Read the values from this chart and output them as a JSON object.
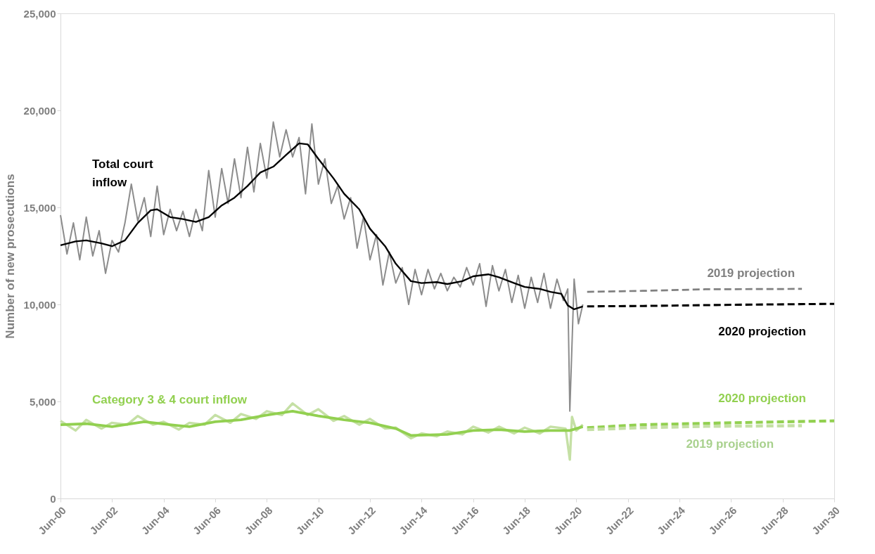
{
  "chart_data": {
    "type": "line",
    "ylabel": "Number of new prosecutions",
    "xlim": [
      "2000-06",
      "2030-06"
    ],
    "xticks": [
      {
        "value": "2000-06",
        "label": "Jun-00"
      },
      {
        "value": "2002-06",
        "label": "Jun-02"
      },
      {
        "value": "2004-06",
        "label": "Jun-04"
      },
      {
        "value": "2006-06",
        "label": "Jun-06"
      },
      {
        "value": "2008-06",
        "label": "Jun-08"
      },
      {
        "value": "2010-06",
        "label": "Jun-10"
      },
      {
        "value": "2012-06",
        "label": "Jun-12"
      },
      {
        "value": "2014-06",
        "label": "Jun-14"
      },
      {
        "value": "2016-06",
        "label": "Jun-16"
      },
      {
        "value": "2018-06",
        "label": "Jun-18"
      },
      {
        "value": "2020-06",
        "label": "Jun-20"
      },
      {
        "value": "2022-06",
        "label": "Jun-22"
      },
      {
        "value": "2024-06",
        "label": "Jun-24"
      },
      {
        "value": "2026-06",
        "label": "Jun-26"
      },
      {
        "value": "2028-06",
        "label": "Jun-28"
      },
      {
        "value": "2030-06",
        "label": "Jun-30"
      }
    ],
    "ylim": [
      0,
      25000
    ],
    "yticks": [
      0,
      {
        "value": 5000,
        "label": "5,000"
      },
      {
        "value": 10000,
        "label": "10,000"
      },
      {
        "value": 15000,
        "label": "15,000"
      },
      {
        "value": 20000,
        "label": "20,000"
      },
      {
        "value": 25000,
        "label": "25,000"
      }
    ],
    "grid": false,
    "legend": false,
    "marker": "none",
    "series": [
      {
        "color": "#8c8c8c",
        "line_style": "solid",
        "x": [
          "2000-06",
          "2000-09",
          "2000-12",
          "2001-03",
          "2001-06",
          "2001-09",
          "2001-12",
          "2002-03",
          "2002-06",
          "2002-09",
          "2002-12",
          "2003-03",
          "2003-06",
          "2003-09",
          "2003-12",
          "2004-03",
          "2004-06",
          "2004-09",
          "2004-12",
          "2005-03",
          "2005-06",
          "2005-09",
          "2005-12",
          "2006-03",
          "2006-06",
          "2006-09",
          "2006-12",
          "2007-03",
          "2007-06",
          "2007-09",
          "2007-12",
          "2008-03",
          "2008-06",
          "2008-09",
          "2008-12",
          "2009-03",
          "2009-06",
          "2009-09",
          "2009-12",
          "2010-03",
          "2010-06",
          "2010-09",
          "2010-12",
          "2011-03",
          "2011-06",
          "2011-09",
          "2011-12",
          "2012-03",
          "2012-06",
          "2012-09",
          "2012-12",
          "2013-03",
          "2013-06",
          "2013-09",
          "2013-12",
          "2014-03",
          "2014-06",
          "2014-09",
          "2014-12",
          "2015-03",
          "2015-06",
          "2015-09",
          "2015-12",
          "2016-03",
          "2016-06",
          "2016-09",
          "2016-12",
          "2017-03",
          "2017-06",
          "2017-09",
          "2017-12",
          "2018-03",
          "2018-06",
          "2018-09",
          "2018-12",
          "2019-03",
          "2019-06",
          "2019-09",
          "2019-12",
          "2020-02",
          "2020-03",
          "2020-05",
          "2020-07",
          "2020-09"
        ],
        "values": [
          14600,
          12600,
          14200,
          12300,
          14500,
          12500,
          13800,
          11600,
          13300,
          12700,
          14200,
          16200,
          14300,
          15500,
          13500,
          16100,
          13600,
          14900,
          13800,
          14800,
          13500,
          14900,
          13800,
          16900,
          14500,
          17000,
          15200,
          17500,
          15500,
          18100,
          15800,
          18300,
          16500,
          19400,
          17600,
          19000,
          17600,
          18600,
          15700,
          19300,
          16200,
          17500,
          15200,
          16100,
          14400,
          15500,
          12900,
          14500,
          12300,
          13600,
          11000,
          12700,
          11100,
          11900,
          10000,
          11800,
          10500,
          11800,
          10800,
          11600,
          10700,
          11400,
          10900,
          11900,
          11000,
          12100,
          9900,
          12000,
          10700,
          11800,
          10100,
          11500,
          9800,
          11400,
          10100,
          11600,
          9800,
          11300,
          10200,
          10800,
          4500,
          11300,
          9000,
          10000
        ]
      },
      {
        "name": "Total court inflow",
        "color": "#000000",
        "line_style": "solid",
        "x": [
          "2000-06",
          "2001-01",
          "2001-06",
          "2002-01",
          "2002-06",
          "2002-12",
          "2003-06",
          "2003-12",
          "2004-03",
          "2004-09",
          "2005-03",
          "2005-09",
          "2006-03",
          "2006-09",
          "2007-03",
          "2007-09",
          "2008-03",
          "2008-09",
          "2009-03",
          "2009-09",
          "2010-01",
          "2010-06",
          "2011-01",
          "2011-06",
          "2012-01",
          "2012-06",
          "2013-01",
          "2013-06",
          "2014-01",
          "2014-06",
          "2015-01",
          "2015-06",
          "2016-01",
          "2016-06",
          "2017-01",
          "2017-06",
          "2018-01",
          "2018-06",
          "2019-01",
          "2019-06",
          "2019-11",
          "2020-02",
          "2020-05",
          "2020-09"
        ],
        "values": [
          13050,
          13250,
          13300,
          13150,
          13000,
          13300,
          14200,
          14850,
          14900,
          14500,
          14400,
          14250,
          14500,
          15100,
          15500,
          16100,
          16800,
          17100,
          17700,
          18300,
          18250,
          17500,
          16500,
          15700,
          14900,
          13900,
          13000,
          12100,
          11200,
          11100,
          11150,
          11050,
          11200,
          11450,
          11550,
          11400,
          11100,
          10900,
          10800,
          10650,
          10550,
          9950,
          9750,
          9900
        ]
      },
      {
        "name": "2019 projection",
        "color": "#808080",
        "line_style": "dashed",
        "x": [
          "2020-11",
          "2023-01",
          "2025-06",
          "2029-03"
        ],
        "values": [
          10650,
          10700,
          10780,
          10800
        ]
      },
      {
        "name": "2020 projection",
        "color": "#000000",
        "line_style": "dashed",
        "x": [
          "2020-11",
          "2023-01",
          "2026-06",
          "2030-06"
        ],
        "values": [
          9900,
          9920,
          9980,
          10030
        ]
      },
      {
        "color": "#c5e0a5",
        "line_style": "solid",
        "x": [
          "2000-06",
          "2001-01",
          "2001-06",
          "2002-01",
          "2002-06",
          "2003-01",
          "2003-06",
          "2004-01",
          "2004-06",
          "2005-01",
          "2005-06",
          "2006-01",
          "2006-06",
          "2007-01",
          "2007-06",
          "2008-01",
          "2008-06",
          "2009-01",
          "2009-06",
          "2010-01",
          "2010-06",
          "2011-01",
          "2011-06",
          "2012-01",
          "2012-06",
          "2013-01",
          "2013-06",
          "2014-01",
          "2014-06",
          "2015-01",
          "2015-06",
          "2016-01",
          "2016-06",
          "2017-01",
          "2017-06",
          "2018-01",
          "2018-06",
          "2019-01",
          "2019-06",
          "2020-01",
          "2020-03",
          "2020-04",
          "2020-06",
          "2020-09"
        ],
        "values": [
          4000,
          3500,
          4050,
          3600,
          3900,
          3800,
          4250,
          3800,
          3950,
          3550,
          3900,
          3800,
          4300,
          3900,
          4350,
          4100,
          4500,
          4300,
          4900,
          4300,
          4600,
          4000,
          4250,
          3800,
          4100,
          3600,
          3650,
          3100,
          3350,
          3200,
          3450,
          3300,
          3700,
          3400,
          3700,
          3350,
          3650,
          3350,
          3700,
          3600,
          2000,
          4200,
          3500,
          3800
        ]
      },
      {
        "name": "Category 3 & 4 court inflow",
        "color": "#92d050",
        "line_style": "solid",
        "x": [
          "2000-06",
          "2001-06",
          "2002-06",
          "2003-09",
          "2004-09",
          "2005-06",
          "2006-06",
          "2007-06",
          "2008-06",
          "2009-06",
          "2010-06",
          "2011-06",
          "2012-06",
          "2013-06",
          "2014-01",
          "2015-06",
          "2016-06",
          "2017-06",
          "2018-06",
          "2019-06",
          "2020-03",
          "2020-09"
        ],
        "values": [
          3800,
          3850,
          3700,
          3950,
          3800,
          3700,
          3950,
          4050,
          4300,
          4500,
          4250,
          4050,
          3900,
          3600,
          3250,
          3300,
          3500,
          3550,
          3450,
          3500,
          3500,
          3700
        ]
      },
      {
        "name": "2020 projection",
        "color": "#92d050",
        "line_style": "dashed",
        "x": [
          "2020-11",
          "2023-01",
          "2026-06",
          "2030-06"
        ],
        "values": [
          3650,
          3800,
          3900,
          4000
        ]
      },
      {
        "name": "2019 projection",
        "color": "#c5e0a5",
        "line_style": "dashed",
        "x": [
          "2020-11",
          "2023-01",
          "2025-06",
          "2029-03"
        ],
        "values": [
          3550,
          3650,
          3720,
          3750
        ]
      }
    ]
  }
}
